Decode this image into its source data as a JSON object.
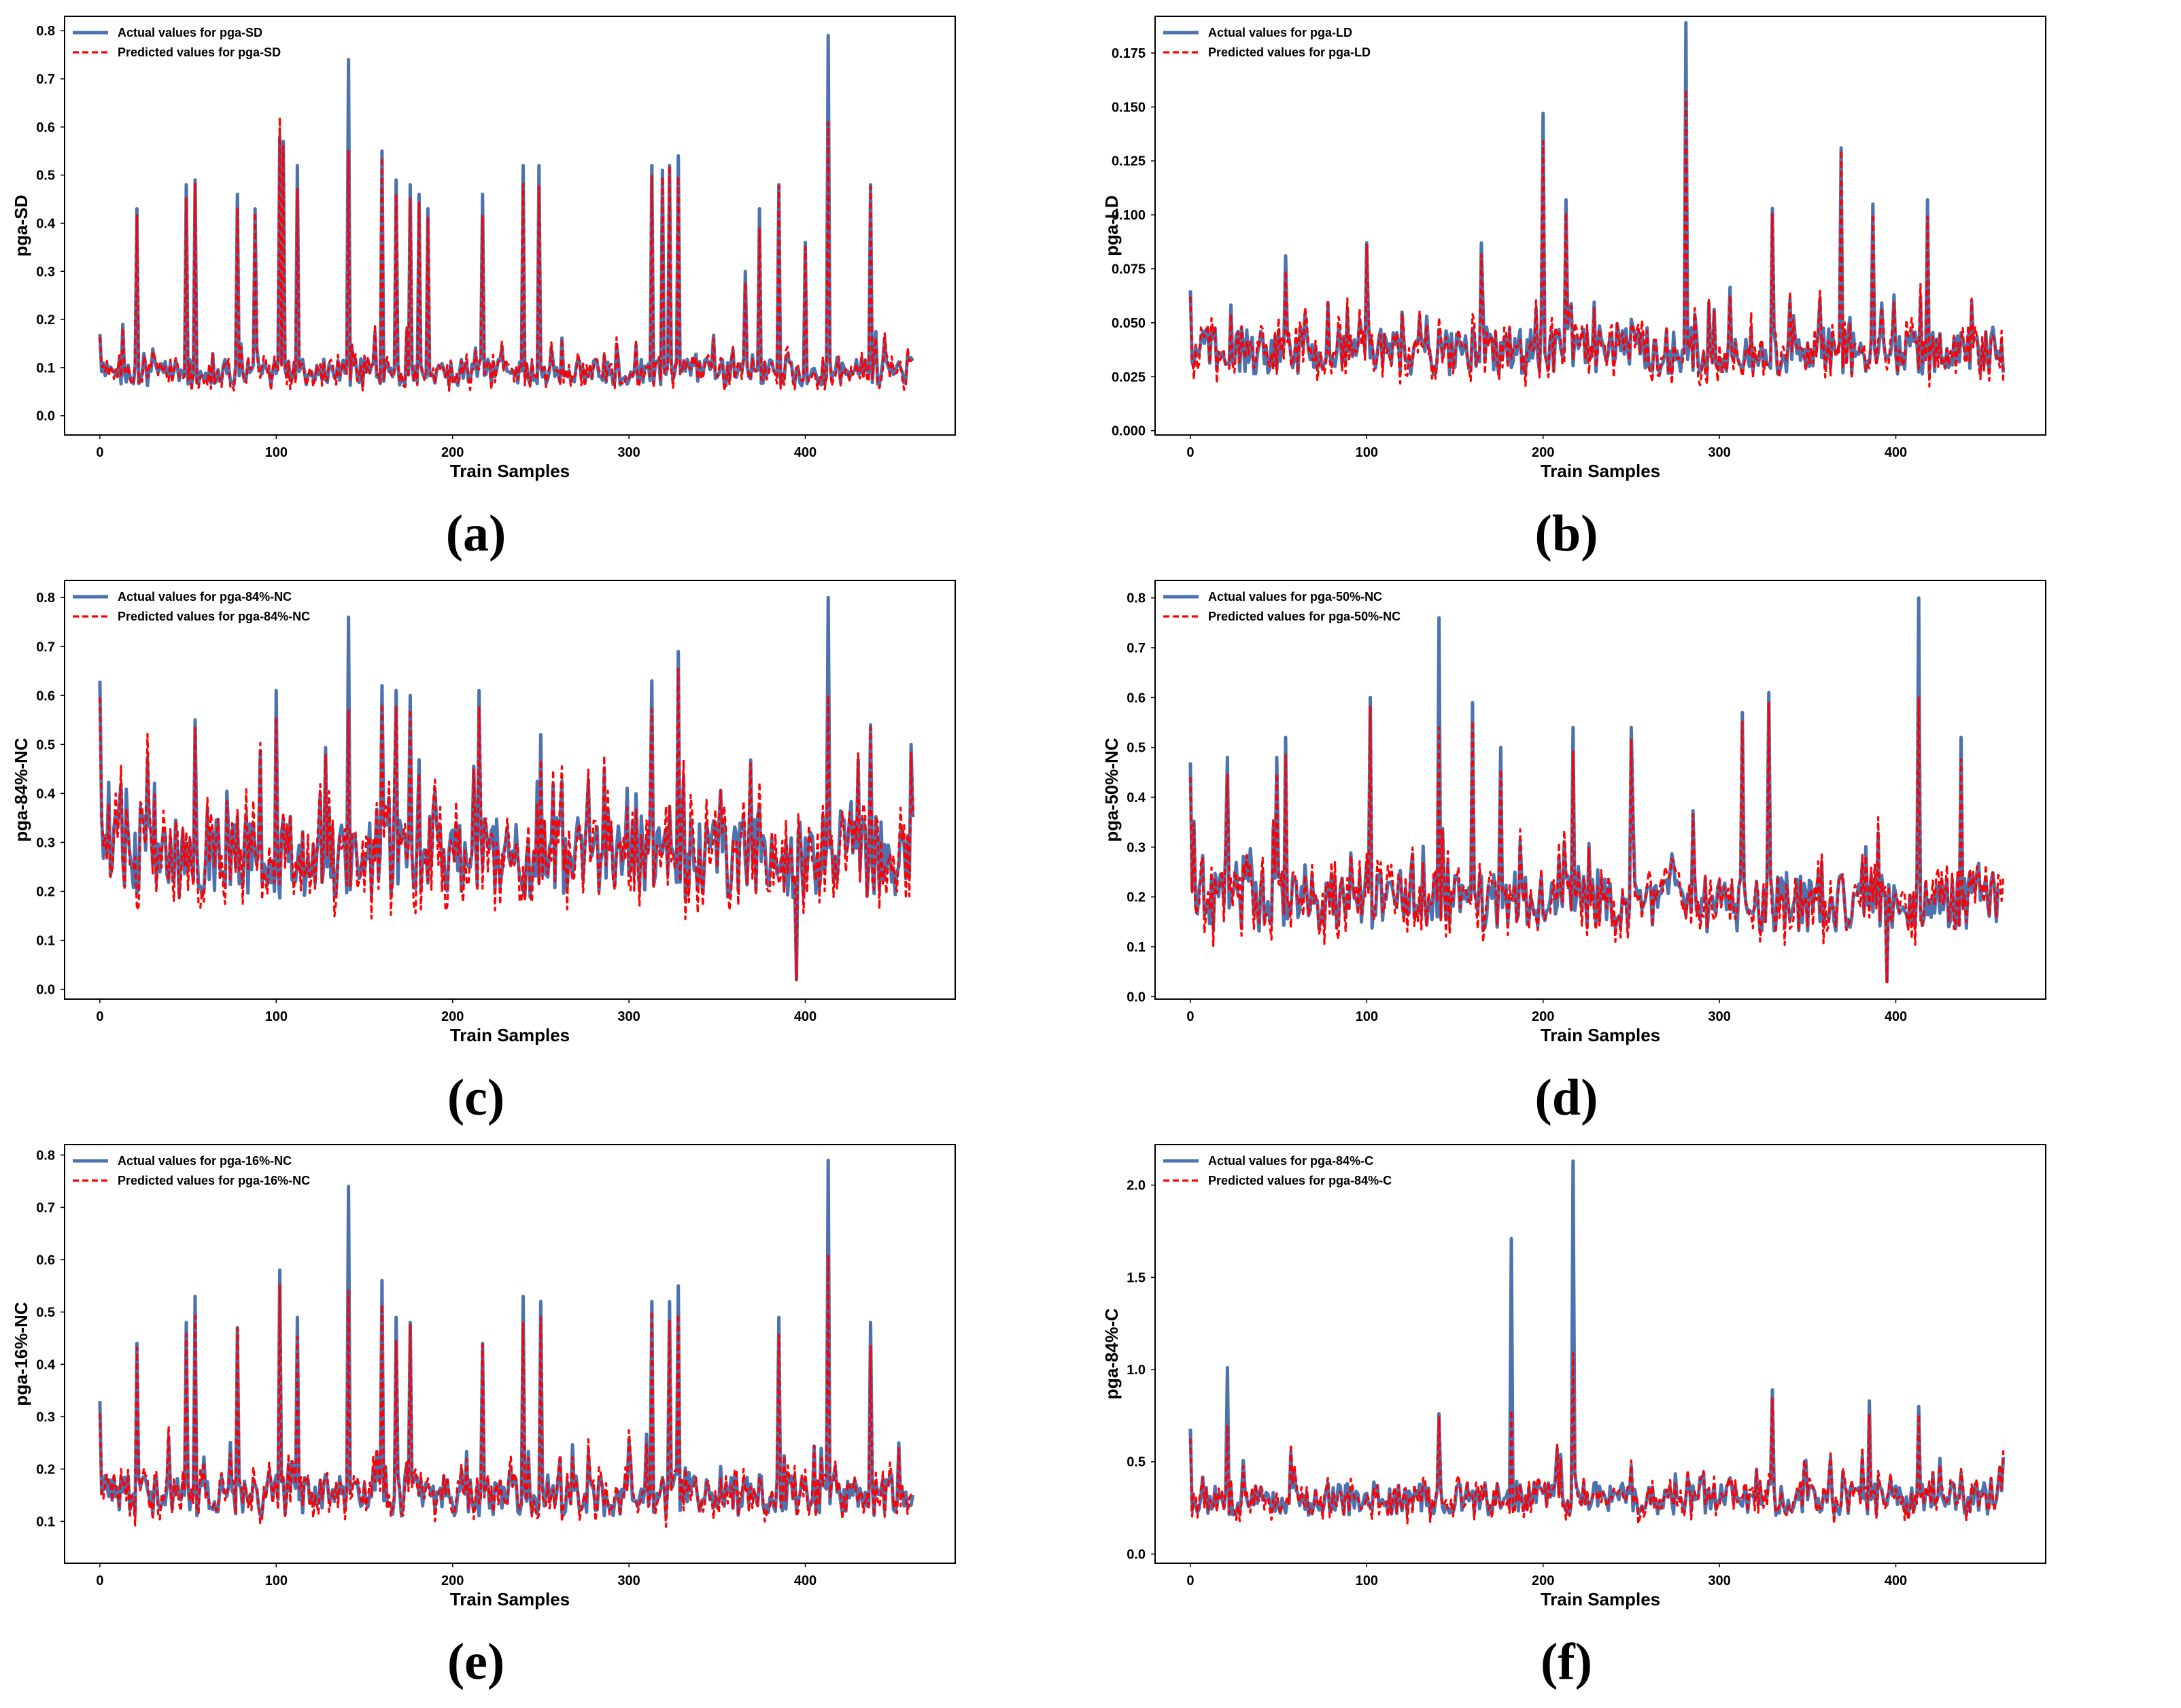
{
  "colors": {
    "actual": "#4c72b0",
    "predicted": "#ff0000",
    "frame": "#000000"
  },
  "chart_data": [
    {
      "id": "a",
      "caption": "(a)",
      "type": "line",
      "xlabel": "Train Samples",
      "ylabel": "pga-SD",
      "xlim": [
        -20,
        485
      ],
      "ylim": [
        -0.04,
        0.83
      ],
      "xticks": [
        0,
        100,
        200,
        300,
        400
      ],
      "yticks": [
        0.0,
        0.1,
        0.2,
        0.3,
        0.4,
        0.5,
        0.6,
        0.7,
        0.8
      ],
      "ytick_labels": [
        "0.0",
        "0.1",
        "0.2",
        "0.3",
        "0.4",
        "0.5",
        "0.6",
        "0.7",
        "0.8"
      ],
      "n": 462,
      "base": 0.09,
      "noise": 0.028,
      "ymin": 0.0,
      "peaks": [
        [
          0,
          0.17
        ],
        [
          13,
          0.19
        ],
        [
          21,
          0.43
        ],
        [
          49,
          0.48
        ],
        [
          54,
          0.49
        ],
        [
          78,
          0.46
        ],
        [
          88,
          0.43
        ],
        [
          102,
          0.58
        ],
        [
          104,
          0.57
        ],
        [
          112,
          0.52
        ],
        [
          141,
          0.74
        ],
        [
          160,
          0.55
        ],
        [
          168,
          0.49
        ],
        [
          176,
          0.48
        ],
        [
          181,
          0.46
        ],
        [
          186,
          0.43
        ],
        [
          217,
          0.46
        ],
        [
          240,
          0.52
        ],
        [
          249,
          0.52
        ],
        [
          313,
          0.52
        ],
        [
          319,
          0.51
        ],
        [
          323,
          0.52
        ],
        [
          328,
          0.54
        ],
        [
          366,
          0.3
        ],
        [
          374,
          0.43
        ],
        [
          385,
          0.48
        ],
        [
          400,
          0.36
        ],
        [
          413,
          0.79
        ],
        [
          437,
          0.48
        ]
      ],
      "series": [
        {
          "name": "Actual values for pga-SD",
          "style": "solid"
        },
        {
          "name": "Predicted values for pga-SD",
          "style": "dashed",
          "peak_adjust": [
            [
              102,
              0.62
            ],
            [
              141,
              0.55
            ],
            [
              413,
              0.61
            ]
          ]
        }
      ]
    },
    {
      "id": "b",
      "caption": "(b)",
      "type": "line",
      "xlabel": "Train Samples",
      "ylabel": "pga-LD",
      "xlim": [
        -20,
        485
      ],
      "ylim": [
        -0.002,
        0.192
      ],
      "xticks": [
        0,
        100,
        200,
        300,
        400
      ],
      "yticks": [
        0.0,
        0.025,
        0.05,
        0.075,
        0.1,
        0.125,
        0.15,
        0.175
      ],
      "ytick_labels": [
        "0.000",
        "0.025",
        "0.050",
        "0.075",
        "0.100",
        "0.125",
        "0.150",
        "0.175"
      ],
      "n": 462,
      "base": 0.037,
      "noise": 0.011,
      "ymin": 0.006,
      "peaks": [
        [
          0,
          0.065
        ],
        [
          54,
          0.081
        ],
        [
          100,
          0.087
        ],
        [
          165,
          0.087
        ],
        [
          200,
          0.147
        ],
        [
          213,
          0.107
        ],
        [
          281,
          0.189
        ],
        [
          330,
          0.103
        ],
        [
          369,
          0.131
        ],
        [
          387,
          0.105
        ],
        [
          418,
          0.107
        ]
      ],
      "series": [
        {
          "name": "Actual values for pga-LD",
          "style": "solid"
        },
        {
          "name": "Predicted values for pga-LD",
          "style": "dashed",
          "peak_adjust": [
            [
              281,
              0.158
            ]
          ]
        }
      ]
    },
    {
      "id": "c",
      "caption": "(c)",
      "type": "line",
      "xlabel": "Train Samples",
      "ylabel": "pga-84%-NC",
      "xlim": [
        -20,
        485
      ],
      "ylim": [
        -0.02,
        0.835
      ],
      "xticks": [
        0,
        100,
        200,
        300,
        400
      ],
      "yticks": [
        0.0,
        0.1,
        0.2,
        0.3,
        0.4,
        0.5,
        0.6,
        0.7,
        0.8
      ],
      "ytick_labels": [
        "0.0",
        "0.1",
        "0.2",
        "0.3",
        "0.4",
        "0.5",
        "0.6",
        "0.7",
        "0.8"
      ],
      "n": 462,
      "base": 0.27,
      "noise": 0.085,
      "ymin": 0.03,
      "peaks": [
        [
          0,
          0.63
        ],
        [
          54,
          0.55
        ],
        [
          100,
          0.61
        ],
        [
          141,
          0.76
        ],
        [
          160,
          0.62
        ],
        [
          168,
          0.61
        ],
        [
          176,
          0.6
        ],
        [
          215,
          0.61
        ],
        [
          250,
          0.52
        ],
        [
          313,
          0.63
        ],
        [
          328,
          0.69
        ],
        [
          395,
          0.02
        ],
        [
          413,
          0.8
        ],
        [
          437,
          0.54
        ],
        [
          460,
          0.5
        ]
      ],
      "series": [
        {
          "name": "Actual values for pga-84%-NC",
          "style": "solid"
        },
        {
          "name": "Predicted values for pga-84%-NC",
          "style": "dashed",
          "peak_adjust": [
            [
              413,
              0.6
            ],
            [
              141,
              0.57
            ]
          ]
        }
      ]
    },
    {
      "id": "d",
      "caption": "(d)",
      "type": "line",
      "xlabel": "Train Samples",
      "ylabel": "pga-50%-NC",
      "xlim": [
        -20,
        485
      ],
      "ylim": [
        -0.005,
        0.835
      ],
      "xticks": [
        0,
        100,
        200,
        300,
        400
      ],
      "yticks": [
        0.0,
        0.1,
        0.2,
        0.3,
        0.4,
        0.5,
        0.6,
        0.7,
        0.8
      ],
      "ytick_labels": [
        "0.0",
        "0.1",
        "0.2",
        "0.3",
        "0.4",
        "0.5",
        "0.6",
        "0.7",
        "0.8"
      ],
      "n": 462,
      "base": 0.19,
      "noise": 0.06,
      "ymin": 0.04,
      "peaks": [
        [
          0,
          0.47
        ],
        [
          21,
          0.48
        ],
        [
          49,
          0.48
        ],
        [
          54,
          0.52
        ],
        [
          102,
          0.6
        ],
        [
          141,
          0.76
        ],
        [
          160,
          0.59
        ],
        [
          176,
          0.5
        ],
        [
          217,
          0.54
        ],
        [
          250,
          0.54
        ],
        [
          313,
          0.57
        ],
        [
          328,
          0.61
        ],
        [
          395,
          0.03
        ],
        [
          413,
          0.8
        ],
        [
          437,
          0.52
        ]
      ],
      "series": [
        {
          "name": "Actual values for pga-50%-NC",
          "style": "solid"
        },
        {
          "name": "Predicted values for pga-50%-NC",
          "style": "dashed",
          "peak_adjust": [
            [
              413,
              0.6
            ],
            [
              141,
              0.54
            ]
          ]
        }
      ]
    },
    {
      "id": "e",
      "caption": "(e)",
      "type": "line",
      "xlabel": "Train Samples",
      "ylabel": "pga-16%-NC",
      "xlim": [
        -20,
        485
      ],
      "ylim": [
        0.02,
        0.82
      ],
      "xticks": [
        0,
        100,
        200,
        300,
        400
      ],
      "yticks": [
        0.1,
        0.2,
        0.3,
        0.4,
        0.5,
        0.6,
        0.7,
        0.8
      ],
      "ytick_labels": [
        "0.1",
        "0.2",
        "0.3",
        "0.4",
        "0.5",
        "0.6",
        "0.7",
        "0.8"
      ],
      "n": 462,
      "base": 0.15,
      "noise": 0.04,
      "ymin": 0.05,
      "peaks": [
        [
          0,
          0.33
        ],
        [
          21,
          0.44
        ],
        [
          49,
          0.48
        ],
        [
          54,
          0.53
        ],
        [
          78,
          0.47
        ],
        [
          102,
          0.58
        ],
        [
          112,
          0.49
        ],
        [
          141,
          0.74
        ],
        [
          160,
          0.56
        ],
        [
          168,
          0.49
        ],
        [
          176,
          0.48
        ],
        [
          217,
          0.44
        ],
        [
          240,
          0.53
        ],
        [
          250,
          0.52
        ],
        [
          313,
          0.52
        ],
        [
          323,
          0.52
        ],
        [
          328,
          0.55
        ],
        [
          385,
          0.49
        ],
        [
          413,
          0.79
        ],
        [
          437,
          0.48
        ]
      ],
      "series": [
        {
          "name": "Actual values for pga-16%-NC",
          "style": "solid"
        },
        {
          "name": "Predicted values for pga-16%-NC",
          "style": "dashed",
          "peak_adjust": [
            [
              413,
              0.61
            ],
            [
              141,
              0.54
            ]
          ]
        }
      ]
    },
    {
      "id": "f",
      "caption": "(f)",
      "type": "line",
      "xlabel": "Train Samples",
      "ylabel": "pga-84%-C",
      "xlim": [
        -20,
        485
      ],
      "ylim": [
        -0.05,
        2.22
      ],
      "xticks": [
        0,
        100,
        200,
        300,
        400
      ],
      "yticks": [
        0.0,
        0.5,
        1.0,
        1.5,
        2.0
      ],
      "ytick_labels": [
        "0.0",
        "0.5",
        "1.0",
        "1.5",
        "2.0"
      ],
      "n": 462,
      "base": 0.3,
      "noise": 0.09,
      "ymin": 0.07,
      "peaks": [
        [
          0,
          0.68
        ],
        [
          21,
          1.01
        ],
        [
          141,
          0.76
        ],
        [
          182,
          1.71
        ],
        [
          217,
          2.13
        ],
        [
          330,
          0.89
        ],
        [
          385,
          0.83
        ],
        [
          413,
          0.8
        ]
      ],
      "series": [
        {
          "name": "Actual values for pga-84%-C",
          "style": "solid"
        },
        {
          "name": "Predicted values for pga-84%-C",
          "style": "dashed",
          "peak_adjust": [
            [
              182,
              0.78
            ],
            [
              217,
              1.09
            ],
            [
              21,
              0.7
            ]
          ]
        }
      ]
    }
  ]
}
